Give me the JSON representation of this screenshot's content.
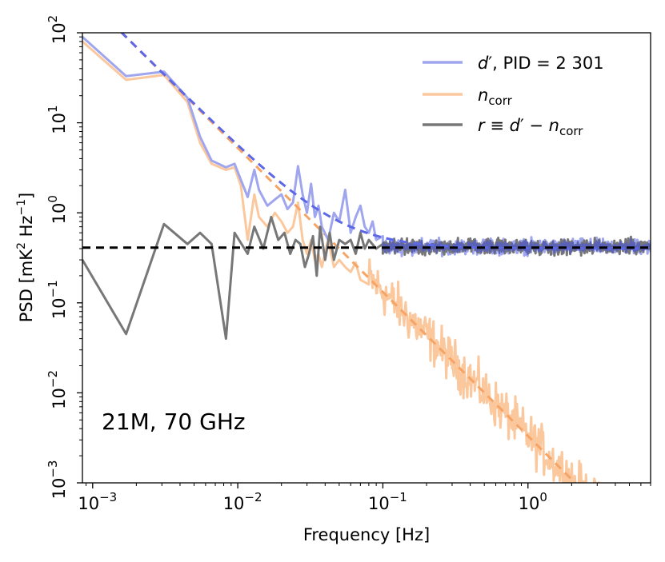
{
  "chart_data": {
    "type": "line",
    "title": "",
    "xlabel": "Frequency [Hz]",
    "ylabel_main": "PSD [mK",
    "ylabel_sup1": "2",
    "ylabel_mid": " Hz",
    "ylabel_sup2": "−1",
    "ylabel_end": "]",
    "xscale": "log",
    "yscale": "log",
    "xlim": [
      0.00085,
      7.0
    ],
    "ylim": [
      0.001,
      100
    ],
    "x_ticks": [
      {
        "value": 0.001,
        "base": "10",
        "exp": "−3"
      },
      {
        "value": 0.01,
        "base": "10",
        "exp": "−2"
      },
      {
        "value": 0.1,
        "base": "10",
        "exp": "−1"
      },
      {
        "value": 1,
        "base": "10",
        "exp": "0"
      }
    ],
    "y_ticks": [
      {
        "value": 0.001,
        "base": "10",
        "exp": "−3"
      },
      {
        "value": 0.01,
        "base": "10",
        "exp": "−2"
      },
      {
        "value": 0.1,
        "base": "10",
        "exp": "−1"
      },
      {
        "value": 1,
        "base": "10",
        "exp": "0"
      },
      {
        "value": 10,
        "base": "10",
        "exp": "1"
      },
      {
        "value": 100,
        "base": "10",
        "exp": "2"
      }
    ],
    "annotation": "21M, 70 GHz",
    "legend_position": "top-right",
    "legend": [
      {
        "key": "d",
        "parts": [
          {
            "t": "d",
            "i": true
          },
          {
            "t": "′, PID = 2 301"
          }
        ],
        "color": "#9fa6ee"
      },
      {
        "key": "n",
        "parts": [
          {
            "t": "n",
            "i": true
          },
          {
            "t": "corr",
            "sub": true
          }
        ],
        "color": "#fbc89d"
      },
      {
        "key": "r",
        "parts": [
          {
            "t": "r",
            "i": true
          },
          {
            "t": " ≡ "
          },
          {
            "t": "d",
            "i": true
          },
          {
            "t": "′ − "
          },
          {
            "t": "n",
            "i": true
          },
          {
            "t": "corr",
            "sub": true
          }
        ],
        "color": "#777777"
      }
    ],
    "series": [
      {
        "name": "d′, PID = 2 301",
        "color": "#9fa6ee",
        "x": [
          0.00085,
          0.0017,
          0.0031,
          0.0045,
          0.0055,
          0.0066,
          0.0083,
          0.0095,
          0.0117,
          0.013,
          0.014,
          0.016,
          0.018,
          0.02,
          0.022,
          0.024,
          0.026,
          0.028,
          0.03,
          0.032,
          0.034,
          0.036,
          0.038,
          0.042,
          0.046,
          0.05,
          0.055,
          0.06,
          0.065,
          0.07,
          0.075,
          0.08,
          0.085,
          0.09,
          0.1
        ],
        "y": [
          90,
          33,
          37,
          19,
          7,
          3.8,
          3.2,
          3.5,
          1.5,
          3.0,
          1.8,
          1.2,
          1.4,
          1.6,
          1.1,
          1.3,
          3.3,
          1.6,
          1.0,
          2.1,
          0.9,
          1.2,
          0.7,
          0.5,
          1.0,
          0.8,
          1.8,
          0.6,
          0.9,
          1.2,
          0.7,
          0.6,
          0.8,
          0.5,
          0.55
        ]
      },
      {
        "name": "n_corr",
        "color": "#fbc89d",
        "x": [
          0.00085,
          0.0017,
          0.0031,
          0.0045,
          0.0055,
          0.0066,
          0.0083,
          0.0095,
          0.0105,
          0.0117,
          0.013,
          0.014,
          0.016,
          0.018,
          0.02,
          0.022,
          0.024,
          0.026,
          0.028,
          0.03,
          0.032,
          0.034,
          0.036,
          0.038,
          0.042,
          0.046,
          0.05,
          0.055,
          0.06,
          0.065,
          0.07,
          0.08
        ],
        "y": [
          80,
          30,
          34,
          17,
          6,
          3.5,
          3.0,
          3.2,
          2.0,
          0.5,
          1.6,
          0.9,
          0.7,
          1.0,
          0.8,
          0.6,
          0.7,
          1.3,
          0.5,
          0.35,
          0.5,
          0.3,
          0.35,
          0.25,
          0.5,
          0.25,
          0.3,
          0.25,
          0.22,
          0.28,
          0.18,
          0.16
        ]
      },
      {
        "name": "r ≡ d′ − n_corr",
        "color": "#777777",
        "x": [
          0.00085,
          0.0017,
          0.0031,
          0.0045,
          0.0055,
          0.0066,
          0.0083,
          0.0095,
          0.0117,
          0.013,
          0.015,
          0.017,
          0.019,
          0.021,
          0.023,
          0.025,
          0.027,
          0.029,
          0.031,
          0.033,
          0.035,
          0.037,
          0.04,
          0.043,
          0.046,
          0.05,
          0.055,
          0.06,
          0.065,
          0.07,
          0.075,
          0.08,
          0.09,
          0.1
        ],
        "y": [
          0.3,
          0.045,
          0.75,
          0.45,
          0.6,
          0.45,
          0.04,
          0.6,
          0.35,
          0.7,
          0.4,
          0.9,
          0.5,
          0.6,
          0.35,
          0.5,
          0.45,
          0.25,
          0.35,
          0.55,
          0.2,
          0.7,
          0.3,
          0.6,
          0.3,
          0.5,
          0.45,
          0.5,
          0.35,
          0.6,
          0.4,
          0.5,
          0.4,
          0.45
        ]
      }
    ],
    "fits": [
      {
        "name": "d′ fit",
        "color": "#5c68e6",
        "dash": "10,7",
        "white_level": 0.4,
        "knee": 0.05,
        "slope": 1.6
      },
      {
        "name": "n_corr fit",
        "color": "#f6a466",
        "dash": "10,7",
        "white_level": 0,
        "knee": 0.05,
        "slope": 1.6
      },
      {
        "name": "white noise level",
        "color": "#000000",
        "dash": "10,7",
        "level": 0.41
      }
    ],
    "noise_band": {
      "x_start": 0.1,
      "x_end": 7.0,
      "level": 0.42,
      "d_color": "#5a62b8",
      "n_color": "#f4b886"
    }
  }
}
